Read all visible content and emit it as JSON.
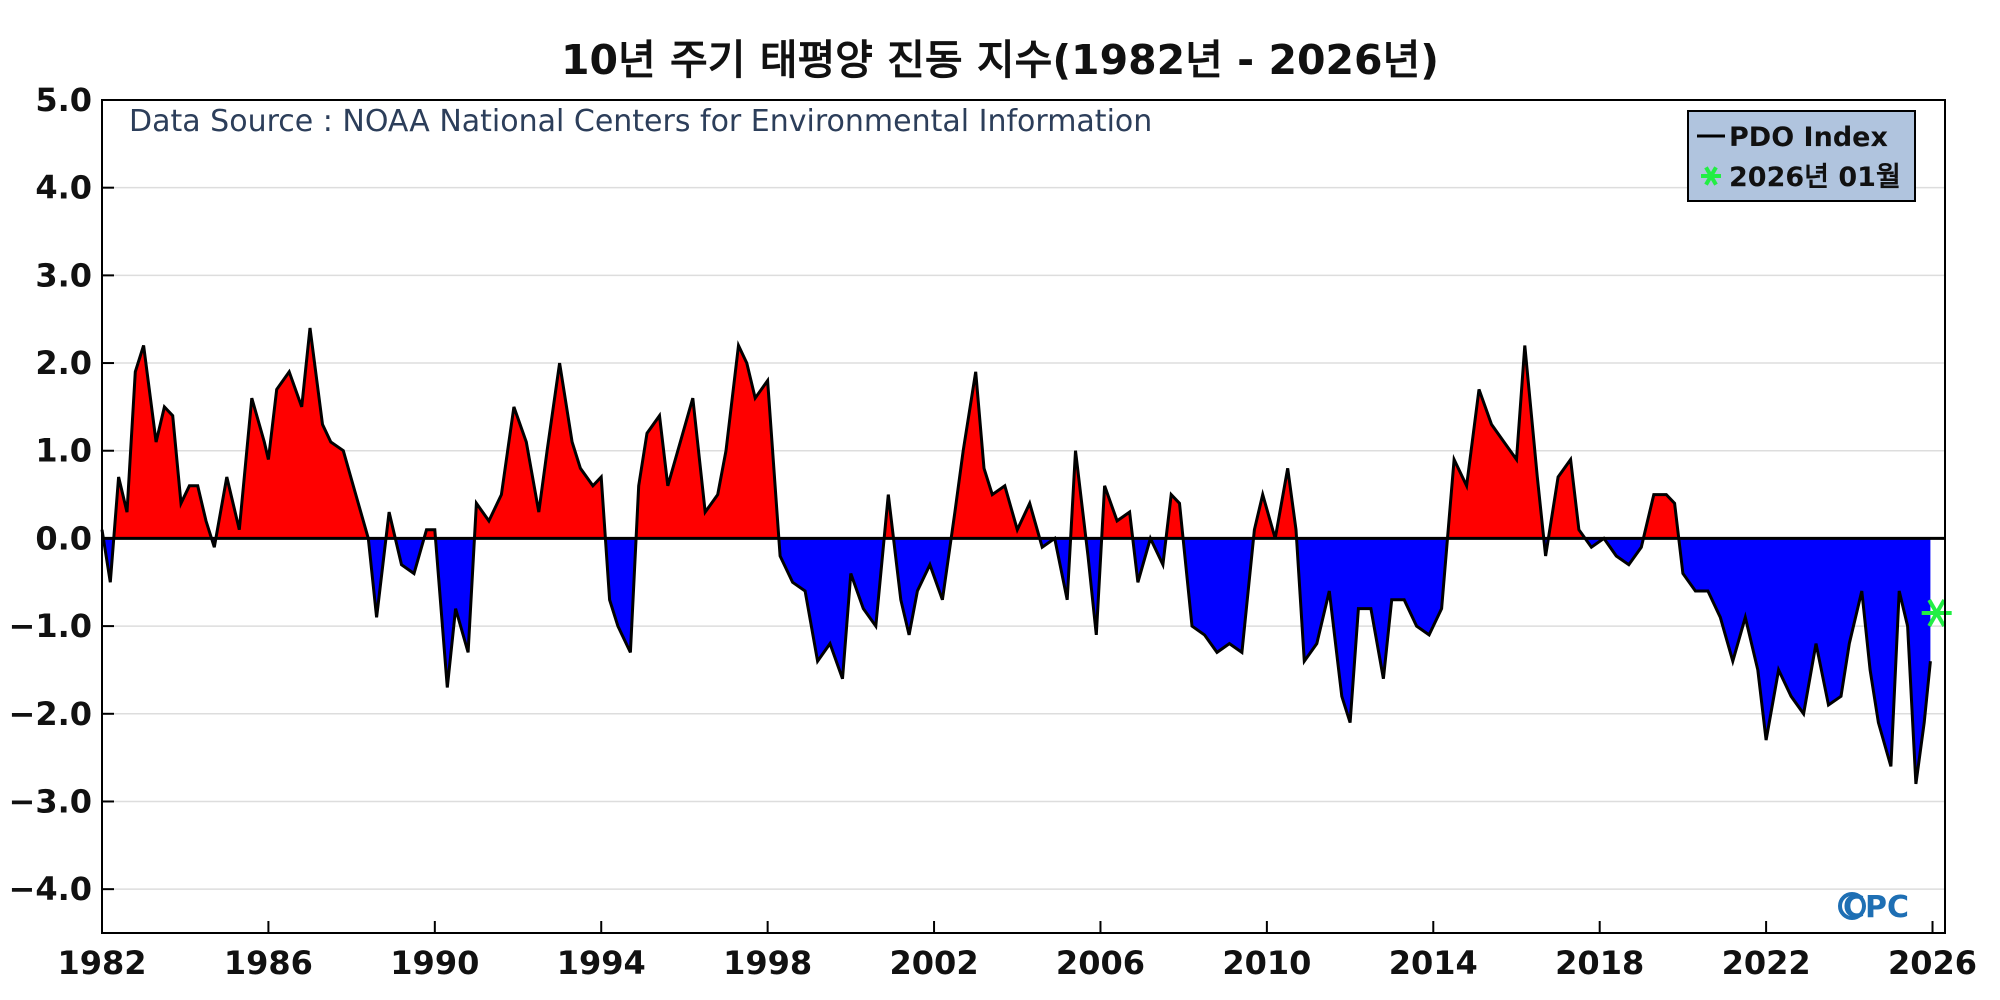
{
  "chart_data": {
    "type": "area",
    "title": "10년 주기 태평양 진동 지수(1982년 - 2026년)",
    "source_note": "Data Source : NOAA National Centers for Environmental Information",
    "xlim": [
      1982,
      2026.3
    ],
    "ylim": [
      -4.5,
      5.0
    ],
    "x_ticks": [
      {
        "value": 1982,
        "label": "1982"
      },
      {
        "value": 1986,
        "label": "1986"
      },
      {
        "value": 1990,
        "label": "1990"
      },
      {
        "value": 1994,
        "label": "1994"
      },
      {
        "value": 1998,
        "label": "1998"
      },
      {
        "value": 2002,
        "label": "2002"
      },
      {
        "value": 2006,
        "label": "2006"
      },
      {
        "value": 2010,
        "label": "2010"
      },
      {
        "value": 2014,
        "label": "2014"
      },
      {
        "value": 2018,
        "label": "2018"
      },
      {
        "value": 2022,
        "label": "2022"
      },
      {
        "value": 2026,
        "label": "2026"
      }
    ],
    "y_ticks": [
      {
        "value": 5,
        "label": "5.0"
      },
      {
        "value": 4,
        "label": "4.0"
      },
      {
        "value": 3,
        "label": "3.0"
      },
      {
        "value": 2,
        "label": "2.0"
      },
      {
        "value": 1,
        "label": "1.0"
      },
      {
        "value": 0,
        "label": "0.0"
      },
      {
        "value": -1,
        "label": "−1.0"
      },
      {
        "value": -2,
        "label": "−2.0"
      },
      {
        "value": -3,
        "label": "−3.0"
      },
      {
        "value": -4,
        "label": "−4.0"
      }
    ],
    "grid": true,
    "legend_position": "top-right",
    "colors": {
      "positive": "#ff0000",
      "negative": "#0000ff",
      "line": "#000000",
      "marker": "#22ee44",
      "legend_bg": "#b0c4de",
      "zero_line": "#000000"
    },
    "series": [
      {
        "name": "PDO Index",
        "x": [
          1982.0,
          1982.2,
          1982.4,
          1982.6,
          1982.8,
          1983.0,
          1983.3,
          1983.5,
          1983.7,
          1983.9,
          1984.1,
          1984.3,
          1984.5,
          1984.7,
          1985.0,
          1985.3,
          1985.6,
          1985.9,
          1986.0,
          1986.2,
          1986.5,
          1986.8,
          1987.0,
          1987.3,
          1987.5,
          1987.8,
          1988.1,
          1988.4,
          1988.6,
          1988.9,
          1989.2,
          1989.5,
          1989.8,
          1990.0,
          1990.3,
          1990.5,
          1990.8,
          1991.0,
          1991.3,
          1991.6,
          1991.9,
          1992.2,
          1992.5,
          1992.7,
          1993.0,
          1993.3,
          1993.5,
          1993.8,
          1994.0,
          1994.2,
          1994.4,
          1994.7,
          1994.9,
          1995.1,
          1995.4,
          1995.6,
          1995.9,
          1996.2,
          1996.5,
          1996.8,
          1997.0,
          1997.3,
          1997.5,
          1997.7,
          1998.0,
          1998.3,
          1998.6,
          1998.9,
          1999.2,
          1999.5,
          1999.8,
          2000.0,
          2000.3,
          2000.6,
          2000.9,
          2001.2,
          2001.4,
          2001.6,
          2001.9,
          2002.2,
          2002.5,
          2002.7,
          2003.0,
          2003.2,
          2003.4,
          2003.7,
          2004.0,
          2004.3,
          2004.6,
          2004.9,
          2005.2,
          2005.4,
          2005.7,
          2005.9,
          2006.1,
          2006.4,
          2006.7,
          2006.9,
          2007.2,
          2007.5,
          2007.7,
          2007.9,
          2008.2,
          2008.5,
          2008.8,
          2009.1,
          2009.4,
          2009.7,
          2009.9,
          2010.2,
          2010.5,
          2010.7,
          2010.9,
          2011.2,
          2011.5,
          2011.8,
          2012.0,
          2012.2,
          2012.5,
          2012.8,
          2013.0,
          2013.3,
          2013.6,
          2013.9,
          2014.2,
          2014.5,
          2014.8,
          2015.1,
          2015.4,
          2015.7,
          2016.0,
          2016.2,
          2016.5,
          2016.7,
          2017.0,
          2017.3,
          2017.5,
          2017.8,
          2018.1,
          2018.4,
          2018.7,
          2019.0,
          2019.3,
          2019.6,
          2019.8,
          2020.0,
          2020.3,
          2020.6,
          2020.9,
          2021.2,
          2021.5,
          2021.8,
          2022.0,
          2022.3,
          2022.6,
          2022.9,
          2023.2,
          2023.5,
          2023.8,
          2024.0,
          2024.3,
          2024.5,
          2024.7,
          2025.0,
          2025.2,
          2025.4,
          2025.6,
          2025.8,
          2025.95
        ],
        "values": [
          0.1,
          -0.5,
          0.7,
          0.3,
          1.9,
          2.2,
          1.1,
          1.5,
          1.4,
          0.4,
          0.6,
          0.6,
          0.2,
          -0.1,
          0.7,
          0.1,
          1.6,
          1.1,
          0.9,
          1.7,
          1.9,
          1.5,
          2.4,
          1.3,
          1.1,
          1.0,
          0.5,
          0.0,
          -0.9,
          0.3,
          -0.3,
          -0.4,
          0.1,
          0.1,
          -1.7,
          -0.8,
          -1.3,
          0.4,
          0.2,
          0.5,
          1.5,
          1.1,
          0.3,
          1.0,
          2.0,
          1.1,
          0.8,
          0.6,
          0.7,
          -0.7,
          -1.0,
          -1.3,
          0.6,
          1.2,
          1.4,
          0.6,
          1.1,
          1.6,
          0.3,
          0.5,
          1.0,
          2.2,
          2.0,
          1.6,
          1.8,
          -0.2,
          -0.5,
          -0.6,
          -1.4,
          -1.2,
          -1.6,
          -0.4,
          -0.8,
          -1.0,
          0.5,
          -0.7,
          -1.1,
          -0.6,
          -0.3,
          -0.7,
          0.3,
          1.0,
          1.9,
          0.8,
          0.5,
          0.6,
          0.1,
          0.4,
          -0.1,
          0.0,
          -0.7,
          1.0,
          -0.2,
          -1.1,
          0.6,
          0.2,
          0.3,
          -0.5,
          0.0,
          -0.3,
          0.5,
          0.4,
          -1.0,
          -1.1,
          -1.3,
          -1.2,
          -1.3,
          0.1,
          0.5,
          0.0,
          0.8,
          0.1,
          -1.4,
          -1.2,
          -0.6,
          -1.8,
          -2.1,
          -0.8,
          -0.8,
          -1.6,
          -0.7,
          -0.7,
          -1.0,
          -1.1,
          -0.8,
          0.9,
          0.6,
          1.7,
          1.3,
          1.1,
          0.9,
          2.2,
          0.7,
          -0.2,
          0.7,
          0.9,
          0.1,
          -0.1,
          0.0,
          -0.2,
          -0.3,
          -0.1,
          0.5,
          0.5,
          0.4,
          -0.4,
          -0.6,
          -0.6,
          -0.9,
          -1.4,
          -0.9,
          -1.5,
          -2.3,
          -1.5,
          -1.8,
          -2.0,
          -1.2,
          -1.9,
          -1.8,
          -1.2,
          -0.6,
          -1.5,
          -2.1,
          -2.6,
          -0.6,
          -1.0,
          -2.8,
          -2.1,
          -1.4
        ]
      }
    ],
    "markers": [
      {
        "name": "2026년 01월",
        "x": 2026.1,
        "y": -0.85
      }
    ]
  }
}
